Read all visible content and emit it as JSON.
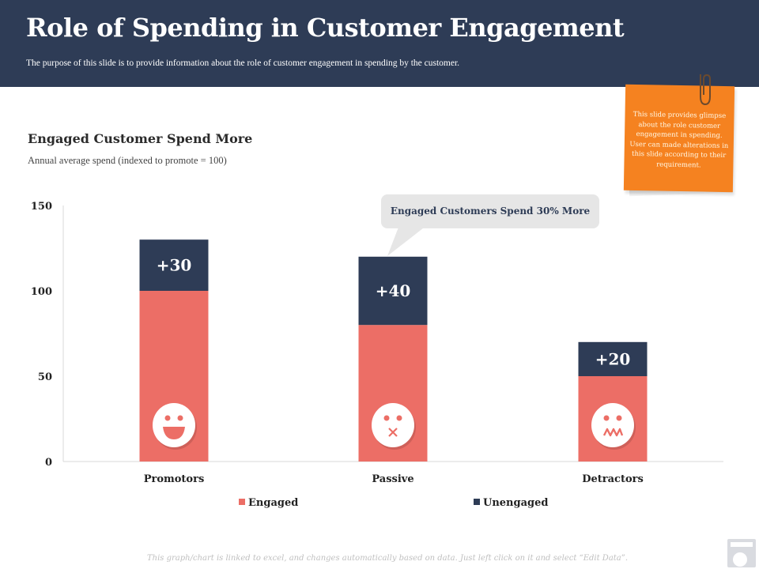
{
  "header": {
    "title": "Role of Spending in Customer Engagement",
    "subtitle": "The purpose of this slide is to provide information about the role  of customer engagement in spending by the customer."
  },
  "note": {
    "text": "This slide provides glimpse about the role customer engagement in spending. User can made alterations in this slide according to their requirement.",
    "color": "#f58220"
  },
  "footer": {
    "text": "This graph/chart is linked  to excel, and changes  automatically  based on data. Just left click on it and select  “Edit Data”."
  },
  "colors": {
    "engaged": "#ec6e66",
    "unengaged": "#2e3c56",
    "callout_bg": "#e6e6e6"
  },
  "chart_data": {
    "type": "bar",
    "stacked": true,
    "title": "Engaged Customer Spend More",
    "subtitle": "Annual average  spend (indexed to promote = 100)",
    "categories": [
      "Promotors",
      "Passive",
      "Detractors"
    ],
    "series": [
      {
        "name": "Engaged",
        "values": [
          100,
          80,
          50
        ]
      },
      {
        "name": "Unengaged",
        "values": [
          30,
          40,
          20
        ]
      }
    ],
    "data_labels": [
      "+30",
      "+40",
      "+20"
    ],
    "face_icons": [
      "happy-face-icon",
      "silent-face-icon",
      "worried-face-icon"
    ],
    "y_ticks": [
      "0",
      "50",
      "100",
      "150"
    ],
    "ylim": [
      0,
      150
    ],
    "xlabel": "",
    "ylabel": "",
    "grid": false,
    "legend_position": "bottom",
    "annotation": "Engaged Customers Spend 30% More"
  }
}
